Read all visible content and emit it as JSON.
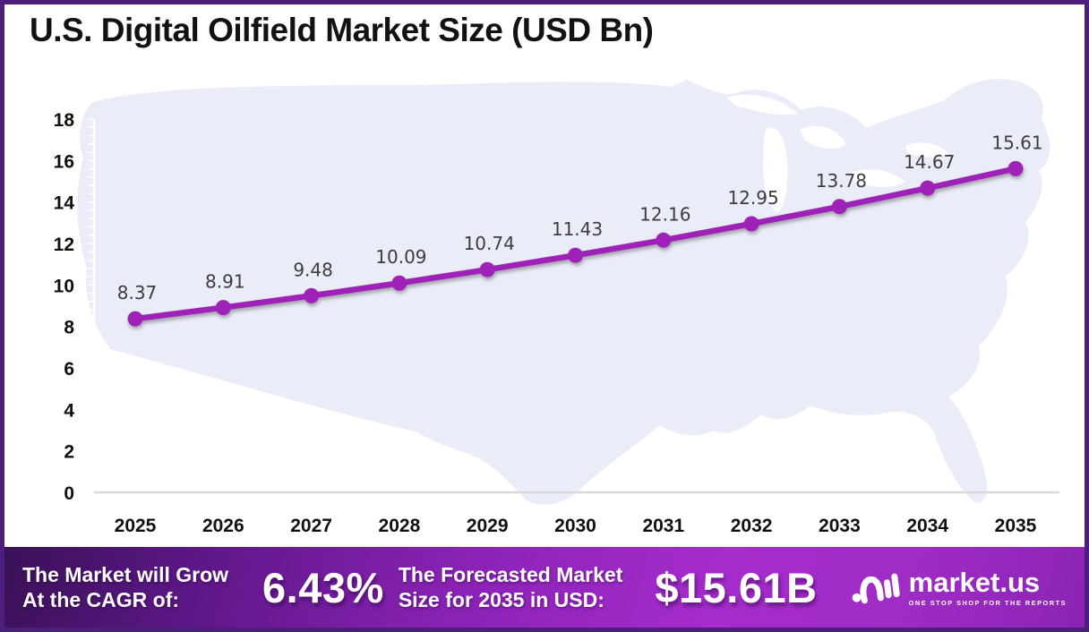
{
  "title": "U.S. Digital Oilfield Market Size (USD Bn)",
  "chart_data": {
    "type": "line",
    "title": "U.S. Digital Oilfield Market Size (USD Bn)",
    "x": [
      2025,
      2026,
      2027,
      2028,
      2029,
      2030,
      2031,
      2032,
      2033,
      2034,
      2035
    ],
    "values": [
      8.37,
      8.91,
      9.48,
      10.09,
      10.74,
      11.43,
      12.16,
      12.95,
      13.78,
      14.67,
      15.61
    ],
    "xlabel": "",
    "ylabel": "",
    "ylim": [
      0,
      18
    ],
    "ytick_step": 2,
    "grid": false,
    "legend": false,
    "line_color": "#9e22b7",
    "marker_color": "#9e22b7",
    "data_label_color": "#3d3d3d",
    "background": "us-map-silhouette",
    "map_color": "#eaecf7"
  },
  "footer": {
    "cagr_label_line1": "The Market will Grow",
    "cagr_label_line2": "At the CAGR of:",
    "cagr_value": "6.43%",
    "forecast_label_line1": "The Forecasted Market",
    "forecast_label_line2": "Size for 2035 in USD:",
    "forecast_value": "$15.61B",
    "logo_text": "market.us",
    "logo_tagline": "ONE STOP SHOP FOR THE REPORTS"
  }
}
